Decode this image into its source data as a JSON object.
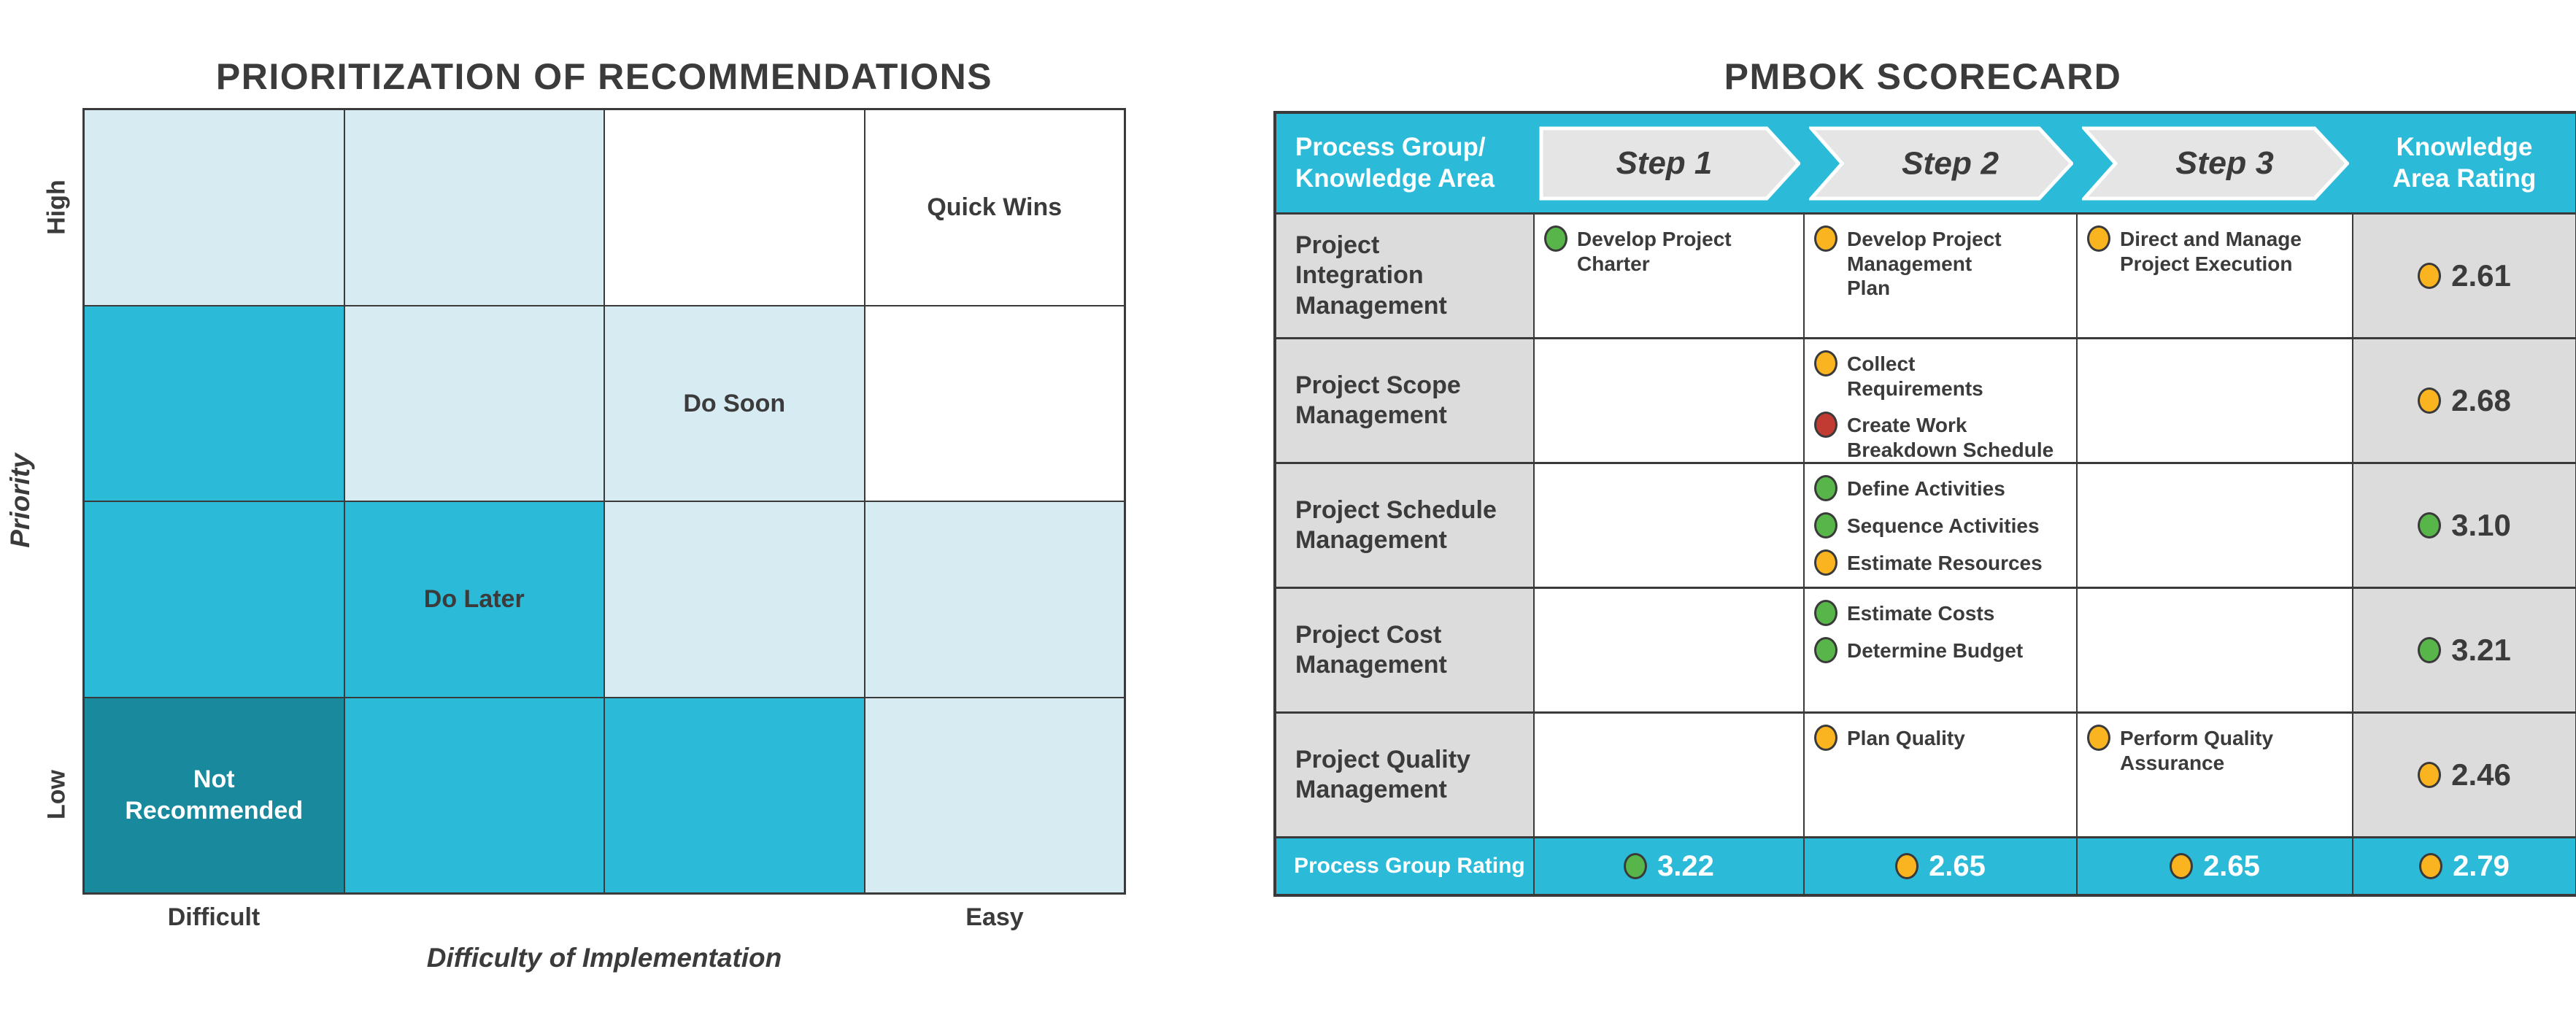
{
  "left_chart": {
    "title": "PRIORITIZATION OF RECOMMENDATIONS",
    "y_axis_label": "Priority",
    "y_high_label": "High",
    "y_low_label": "Low",
    "x_axis_label": "Difficulty of Implementation",
    "x_left_label": "Difficult",
    "x_right_label": "Easy",
    "rows": [
      [
        {
          "tone": "light"
        },
        {
          "tone": "light"
        },
        {
          "tone": "white"
        },
        {
          "tone": "white",
          "label": "Quick Wins"
        }
      ],
      [
        {
          "tone": "mid"
        },
        {
          "tone": "light"
        },
        {
          "tone": "light",
          "label": "Do Soon"
        },
        {
          "tone": "white"
        }
      ],
      [
        {
          "tone": "mid"
        },
        {
          "tone": "mid",
          "label": "Do Later"
        },
        {
          "tone": "light"
        },
        {
          "tone": "light"
        }
      ],
      [
        {
          "tone": "dark",
          "label": "Not\nRecommended"
        },
        {
          "tone": "mid"
        },
        {
          "tone": "mid"
        },
        {
          "tone": "light"
        }
      ]
    ]
  },
  "scorecard": {
    "title": "PMBOK SCORECARD",
    "header": {
      "area_label": "Process Group/\nKnowledge Area",
      "steps": [
        "Step 1",
        "Step 2",
        "Step 3"
      ],
      "rating_label": "Knowledge\nArea Rating"
    },
    "rows": [
      {
        "area": "Project\nIntegration\nManagement",
        "steps": [
          [
            {
              "status": "green",
              "label": "Develop Project\nCharter"
            }
          ],
          [
            {
              "status": "yellow",
              "label": "Develop Project\nManagement\nPlan"
            }
          ],
          [
            {
              "status": "yellow",
              "label": "Direct and Manage\nProject Execution"
            }
          ]
        ],
        "rating": {
          "status": "yellow",
          "value": "2.61"
        }
      },
      {
        "area": "Project Scope\nManagement",
        "steps": [
          [],
          [
            {
              "status": "yellow",
              "label": "Collect\nRequirements"
            },
            {
              "status": "red",
              "label": "Create Work\nBreakdown Schedule"
            }
          ],
          []
        ],
        "rating": {
          "status": "yellow",
          "value": "2.68"
        }
      },
      {
        "area": "Project Schedule\nManagement",
        "steps": [
          [],
          [
            {
              "status": "green",
              "label": "Define Activities"
            },
            {
              "status": "green",
              "label": "Sequence Activities"
            },
            {
              "status": "yellow",
              "label": "Estimate Resources"
            }
          ],
          []
        ],
        "rating": {
          "status": "green",
          "value": "3.10"
        }
      },
      {
        "area": "Project Cost\nManagement",
        "steps": [
          [],
          [
            {
              "status": "green",
              "label": "Estimate Costs"
            },
            {
              "status": "green",
              "label": "Determine Budget"
            }
          ],
          []
        ],
        "rating": {
          "status": "green",
          "value": "3.21"
        }
      },
      {
        "area": "Project Quality\nManagement",
        "steps": [
          [],
          [
            {
              "status": "yellow",
              "label": "Plan Quality"
            }
          ],
          [
            {
              "status": "yellow",
              "label": "Perform Quality\nAssurance"
            }
          ]
        ],
        "rating": {
          "status": "yellow",
          "value": "2.46"
        }
      }
    ],
    "footer": {
      "label": "Process Group Rating",
      "values": [
        {
          "status": "green",
          "value": "3.22"
        },
        {
          "status": "yellow",
          "value": "2.65"
        },
        {
          "status": "yellow",
          "value": "2.65"
        },
        {
          "status": "yellow",
          "value": "2.79"
        }
      ]
    }
  },
  "colors": {
    "cyan": "#2bbad8",
    "light_blue": "#d7ebf3",
    "dark_teal": "#19899d",
    "cell_gray": "#dcdcdc",
    "arrow_gray": "#e5e5e5",
    "text_dark": "#3b3b3b",
    "border_dark": "#3a3a3a",
    "status_green": "#57b549",
    "status_yellow": "#f9b41f",
    "status_red": "#c23b32"
  },
  "chart_data": [
    {
      "type": "heatmap",
      "title": "PRIORITIZATION OF RECOMMENDATIONS",
      "xlabel": "Difficulty of Implementation",
      "ylabel": "Priority",
      "x_axis_ends": [
        "Difficult",
        "Easy"
      ],
      "y_axis_ends": [
        "High",
        "Low"
      ],
      "grid_tones": [
        [
          "light",
          "light",
          "white",
          "white"
        ],
        [
          "mid",
          "light",
          "light",
          "white"
        ],
        [
          "mid",
          "mid",
          "light",
          "light"
        ],
        [
          "dark",
          "mid",
          "mid",
          "light"
        ]
      ],
      "zone_labels": [
        {
          "row": 1,
          "col": 4,
          "label": "Quick Wins"
        },
        {
          "row": 2,
          "col": 3,
          "label": "Do Soon"
        },
        {
          "row": 3,
          "col": 2,
          "label": "Do Later"
        },
        {
          "row": 4,
          "col": 1,
          "label": "Not Recommended"
        }
      ]
    },
    {
      "type": "table",
      "title": "PMBOK SCORECARD",
      "columns": [
        "Process Group/Knowledge Area",
        "Step 1",
        "Step 2",
        "Step 3",
        "Knowledge Area Rating"
      ],
      "knowledge_area_ratings": {
        "Project Integration Management": 2.61,
        "Project Scope Management": 2.68,
        "Project Schedule Management": 3.1,
        "Project Cost Management": 3.21,
        "Project Quality Management": 2.46
      },
      "process_group_ratings": {
        "Step 1": 3.22,
        "Step 2": 2.65,
        "Step 3": 2.65,
        "Overall": 2.79
      }
    }
  ]
}
